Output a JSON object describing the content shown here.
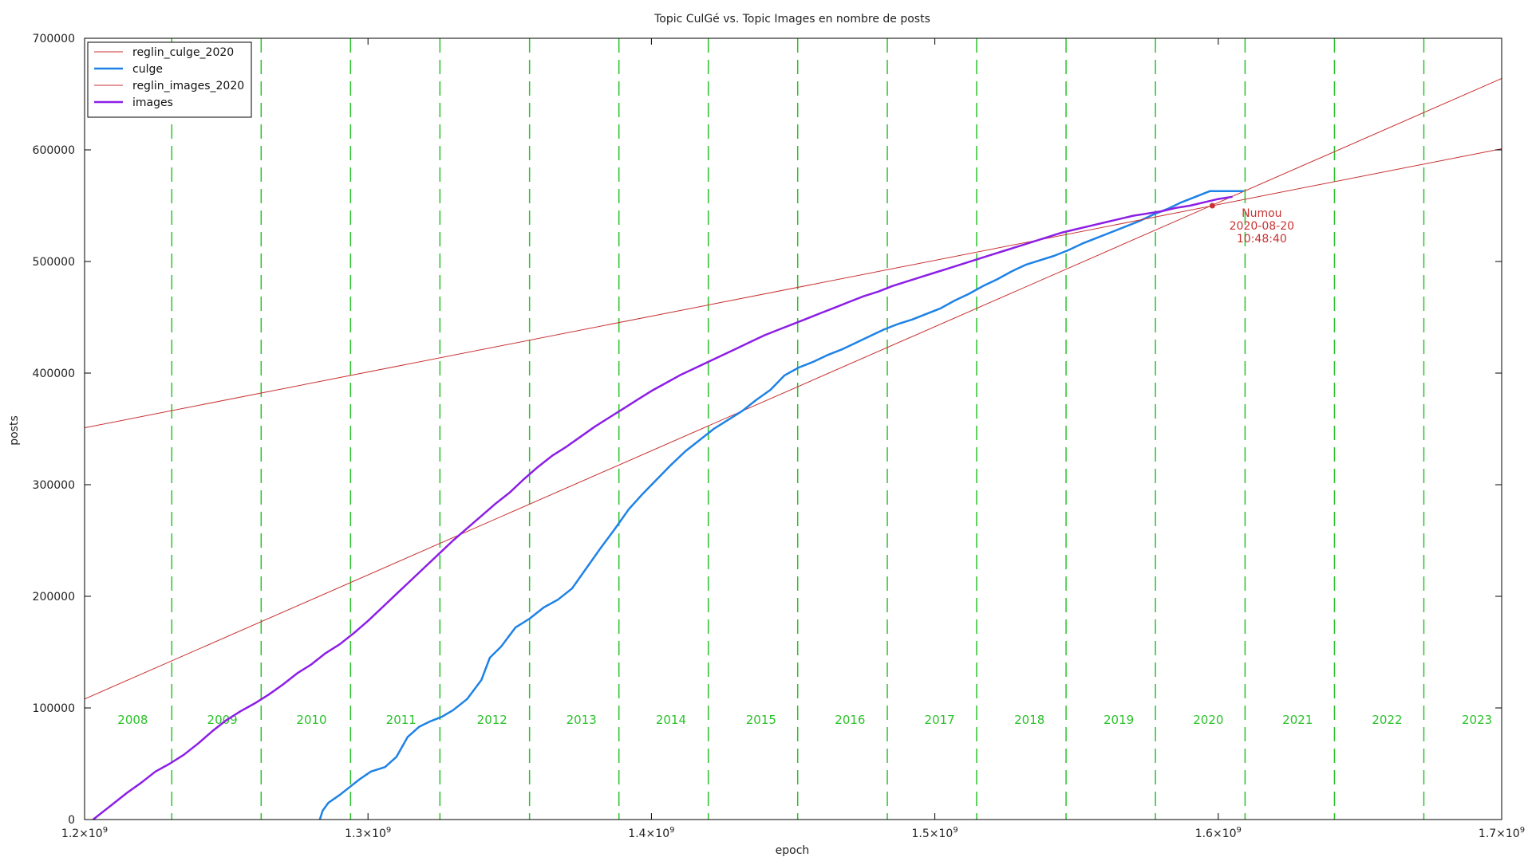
{
  "chart_data": {
    "type": "line",
    "title": "Topic CulGé vs. Topic Images en nombre de posts",
    "xlabel": "epoch",
    "ylabel": "posts",
    "xlim": [
      1200000000,
      1700000000
    ],
    "ylim": [
      0,
      700000
    ],
    "x_ticks": [
      1200000000,
      1300000000,
      1400000000,
      1500000000,
      1600000000,
      1700000000
    ],
    "x_tick_mantissas": [
      "1.2",
      "1.3",
      "1.4",
      "1.5",
      "1.6",
      "1.7"
    ],
    "x_tick_times": "×10",
    "x_tick_exponent": "9",
    "y_ticks": [
      0,
      100000,
      200000,
      300000,
      400000,
      500000,
      600000,
      700000
    ],
    "y_tick_labels": [
      "0",
      "100000",
      "200000",
      "300000",
      "400000",
      "500000",
      "600000",
      "700000"
    ],
    "grid": false,
    "legend_position": "top-left",
    "year_markers": {
      "color": "#2bc22b",
      "boundaries": [
        1230768000,
        1262304000,
        1293840000,
        1325376000,
        1357000000,
        1388534400,
        1420070400,
        1451606400,
        1483228800,
        1514764800,
        1546300800,
        1577836800,
        1609459200,
        1640995200,
        1672531200
      ],
      "labels": [
        {
          "year": "2008",
          "x": 1217000000
        },
        {
          "year": "2009",
          "x": 1248600000
        },
        {
          "year": "2010",
          "x": 1280100000
        },
        {
          "year": "2011",
          "x": 1311700000
        },
        {
          "year": "2012",
          "x": 1343800000
        },
        {
          "year": "2013",
          "x": 1375300000
        },
        {
          "year": "2014",
          "x": 1406900000
        },
        {
          "year": "2015",
          "x": 1438700000
        },
        {
          "year": "2016",
          "x": 1470100000
        },
        {
          "year": "2017",
          "x": 1501700000
        },
        {
          "year": "2018",
          "x": 1533400000
        },
        {
          "year": "2019",
          "x": 1564900000
        },
        {
          "year": "2020",
          "x": 1596500000
        },
        {
          "year": "2021",
          "x": 1628000000
        },
        {
          "year": "2022",
          "x": 1659600000
        },
        {
          "year": "2023",
          "x": 1691300000
        }
      ]
    },
    "series": [
      {
        "name": "reglin_culge_2020",
        "color": "#c83232",
        "width": 1,
        "x": [
          1200000000,
          1700000000
        ],
        "y": [
          108000,
          664000
        ]
      },
      {
        "name": "culge",
        "color": "#1e82e6",
        "width": 2.5,
        "x": [
          1283000000,
          1284000000,
          1286000000,
          1290000000,
          1293000000,
          1297000000,
          1301000000,
          1306000000,
          1310000000,
          1314000000,
          1318000000,
          1322000000,
          1326000000,
          1330000000,
          1335000000,
          1340000000,
          1343000000,
          1347000000,
          1352000000,
          1357000000,
          1362000000,
          1367000000,
          1372000000,
          1377000000,
          1382000000,
          1387000000,
          1392000000,
          1397000000,
          1402000000,
          1407000000,
          1412000000,
          1417000000,
          1422000000,
          1427000000,
          1432000000,
          1437000000,
          1442000000,
          1447000000,
          1452000000,
          1457000000,
          1462000000,
          1467000000,
          1472000000,
          1477000000,
          1482000000,
          1487000000,
          1492000000,
          1497000000,
          1502000000,
          1507000000,
          1512000000,
          1517000000,
          1522000000,
          1527000000,
          1532000000,
          1537000000,
          1542000000,
          1547000000,
          1552000000,
          1557000000,
          1562000000,
          1567000000,
          1572000000,
          1577000000,
          1582000000,
          1587000000,
          1592000000,
          1597000000,
          1602000000,
          1609000000
        ],
        "y": [
          0,
          8000,
          15000,
          22000,
          28000,
          36000,
          43000,
          47000,
          56000,
          74000,
          83000,
          88000,
          92000,
          98000,
          108000,
          125000,
          145000,
          155000,
          172000,
          180000,
          190000,
          197000,
          207000,
          225000,
          243000,
          260000,
          278000,
          292000,
          305000,
          318000,
          330000,
          340000,
          350000,
          358000,
          366000,
          376000,
          385000,
          398000,
          405000,
          410000,
          416000,
          421000,
          427000,
          433000,
          439000,
          444000,
          448000,
          453000,
          458000,
          465000,
          471000,
          478000,
          484000,
          491000,
          497000,
          501000,
          505000,
          510000,
          516000,
          521000,
          526000,
          531000,
          536000,
          542000,
          547000,
          553000,
          558000,
          563000,
          563000,
          563000
        ]
      },
      {
        "name": "reglin_images_2020",
        "color": "#c83232",
        "width": 1,
        "x": [
          1200000000,
          1700000000
        ],
        "y": [
          351000,
          601000
        ]
      },
      {
        "name": "images",
        "color": "#8c1ee6",
        "width": 2.5,
        "x": [
          1203000000,
          1207000000,
          1211000000,
          1215000000,
          1220000000,
          1225000000,
          1230000000,
          1235000000,
          1240000000,
          1245000000,
          1250000000,
          1255000000,
          1260000000,
          1265000000,
          1270000000,
          1275000000,
          1280000000,
          1285000000,
          1290000000,
          1295000000,
          1300000000,
          1305000000,
          1310000000,
          1315000000,
          1320000000,
          1325000000,
          1330000000,
          1335000000,
          1340000000,
          1345000000,
          1350000000,
          1355000000,
          1360000000,
          1365000000,
          1370000000,
          1375000000,
          1380000000,
          1385000000,
          1390000000,
          1395000000,
          1400000000,
          1405000000,
          1410000000,
          1415000000,
          1420000000,
          1425000000,
          1430000000,
          1435000000,
          1440000000,
          1445000000,
          1450000000,
          1455000000,
          1460000000,
          1465000000,
          1470000000,
          1475000000,
          1480000000,
          1485000000,
          1490000000,
          1495000000,
          1500000000,
          1505000000,
          1510000000,
          1515000000,
          1520000000,
          1525000000,
          1530000000,
          1535000000,
          1540000000,
          1545000000,
          1550000000,
          1555000000,
          1560000000,
          1565000000,
          1570000000,
          1575000000,
          1580000000,
          1585000000,
          1590000000,
          1595000000,
          1600000000,
          1605000000
        ],
        "y": [
          0,
          8000,
          16000,
          24000,
          33000,
          43000,
          50000,
          58000,
          68000,
          79000,
          89000,
          97000,
          104000,
          112000,
          121000,
          131000,
          139000,
          149000,
          157000,
          167000,
          178000,
          190000,
          202000,
          214000,
          226000,
          238000,
          250000,
          261000,
          272000,
          283000,
          293000,
          305000,
          316000,
          326000,
          334000,
          343000,
          352000,
          360000,
          368000,
          376000,
          384000,
          391000,
          398000,
          404000,
          410000,
          416000,
          422000,
          428000,
          434000,
          439000,
          444000,
          449000,
          454000,
          459000,
          464000,
          469000,
          473000,
          478000,
          482000,
          486000,
          490000,
          494000,
          498000,
          502000,
          506000,
          510000,
          514000,
          518000,
          522000,
          526000,
          529000,
          532000,
          535000,
          538000,
          541000,
          543000,
          545000,
          548000,
          550000,
          553000,
          556000,
          558000
        ]
      }
    ],
    "annotation": {
      "lines": [
        "Numou",
        "2020-08-20",
        "10:48:40"
      ],
      "x": 1597900000,
      "y": 550000,
      "color": "#c83232"
    }
  }
}
